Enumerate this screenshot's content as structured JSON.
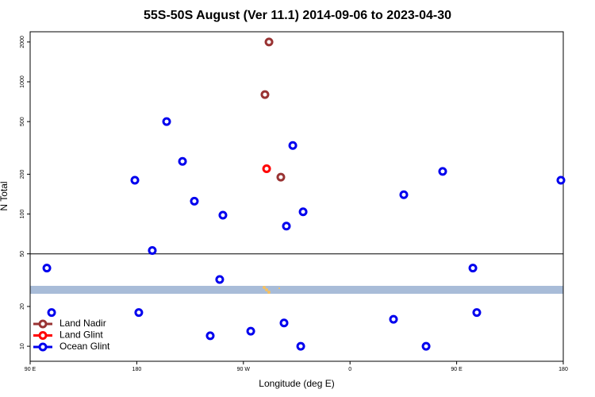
{
  "chart_data": {
    "type": "scatter",
    "title": "55S-50S August (Ver 11.1)   2014-09-06 to 2023-04-30",
    "xlabel": "Longitude (deg E)",
    "ylabel": "N Total",
    "log_y": true,
    "xlim": [
      90,
      540
    ],
    "ylim": [
      7.7,
      2390
    ],
    "xticks": [
      {
        "value": 90,
        "label": "90 E"
      },
      180,
      {
        "value": 270,
        "label": "90 W"
      },
      {
        "value": 360,
        "label": "0"
      },
      {
        "value": 450,
        "label": "90 E"
      },
      {
        "value": 540,
        "label": "180"
      }
    ],
    "yticks": [
      10,
      20,
      50,
      100,
      200,
      500,
      1000,
      2000
    ],
    "hline": 50,
    "legend": "bottom-left",
    "series": [
      {
        "name": "Land Nadir",
        "color": "#993333",
        "x": [
          291.6,
          288.2,
          301.6
        ],
        "values": [
          2000,
          800,
          190
        ]
      },
      {
        "name": "Land Glint",
        "color": "#ff0000",
        "x": [
          289.6
        ],
        "values": [
          220
        ]
      },
      {
        "name": "Ocean Glint",
        "color": "#0000ee",
        "x": [
          104.1,
          108.1,
          178.4,
          181.7,
          193.1,
          205.2,
          218.6,
          228.6,
          242,
          250,
          252.7,
          276.2,
          304.3,
          306.3,
          311.7,
          318.4,
          320.4,
          396.7,
          405.4,
          424.2,
          438.2,
          463.7,
          467,
          538
        ],
        "values": [
          39,
          18,
          180,
          18,
          53,
          500,
          250,
          125,
          12,
          32,
          98,
          13,
          15,
          81,
          330,
          10,
          104,
          16,
          140,
          10,
          210,
          39,
          18,
          180
        ]
      }
    ]
  }
}
